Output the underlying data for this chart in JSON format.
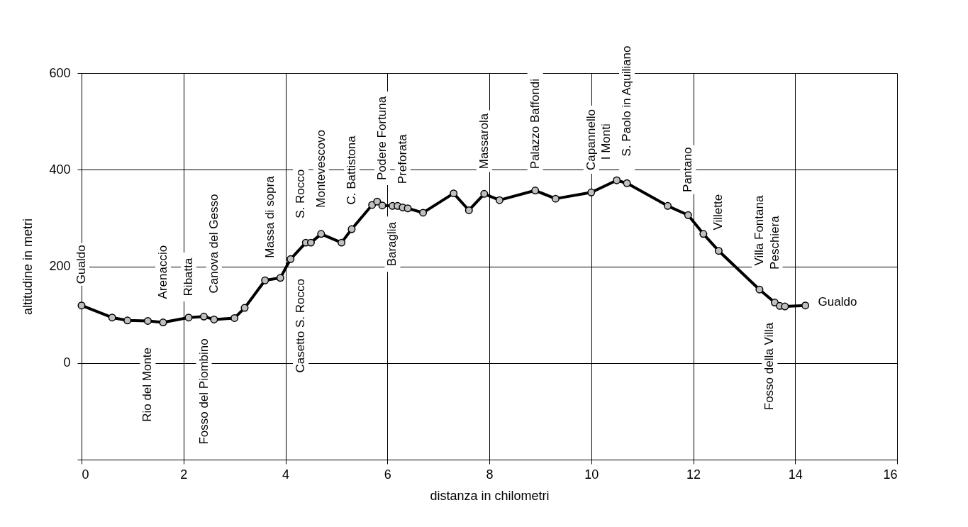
{
  "chart_data": {
    "type": "line",
    "xlabel": "distanza in chilometri",
    "ylabel": "altitudine  in metri",
    "xlim": [
      0,
      16
    ],
    "xticks": [
      0,
      2,
      4,
      6,
      8,
      10,
      12,
      14,
      16
    ],
    "ylim": [
      -200,
      600
    ],
    "yticks": [
      {
        "value": -200,
        "label": null
      },
      0,
      200,
      400,
      600
    ],
    "grid": true,
    "marker": "circle",
    "line_style": "solid",
    "series": [
      {
        "color": "#000000",
        "x": [
          0,
          0.6,
          0.9,
          1.3,
          1.6,
          2.1,
          2.4,
          2.6,
          3.0,
          3.2,
          3.6,
          3.9,
          4.1,
          4.4,
          4.5,
          4.7,
          5.1,
          5.3,
          5.7,
          5.8,
          5.9,
          6.1,
          6.2,
          6.3,
          6.4,
          6.7,
          7.3,
          7.6,
          7.9,
          8.2,
          8.9,
          9.3,
          10.0,
          10.5,
          10.7,
          11.5,
          11.9,
          12.2,
          12.5,
          13.3,
          13.6,
          13.7,
          13.8,
          14.2
        ],
        "values": [
          119,
          94,
          88,
          87,
          84,
          94,
          96,
          90,
          93,
          114,
          171,
          176,
          215,
          249,
          249,
          267,
          249,
          277,
          327,
          334,
          326,
          325,
          325,
          322,
          320,
          311,
          351,
          316,
          350,
          337,
          357,
          340,
          353,
          378,
          372,
          325,
          306,
          267,
          232,
          152,
          125,
          118,
          117,
          119
        ]
      }
    ],
    "annotations": [
      "Gualdo",
      "Arenaccio",
      "Ribatta",
      "Canova del Gesso",
      "Massa di sopra",
      "S. Rocco",
      "Montevescovo",
      "C. Battistona",
      "Podere Fortuna",
      "Preforata",
      "Massarola",
      "Palazzo Baffondi",
      "Capannello",
      "I Monti",
      "S. Paolo in Aquiliano",
      "Pantano",
      "Villette",
      "Villa Fontana",
      "Peschiera",
      "Gualdo",
      "Rio del Monte",
      "Fosso del Piombino",
      "Casetto S. Rocco",
      "Baraglia",
      "Fosso della Villa"
    ]
  }
}
